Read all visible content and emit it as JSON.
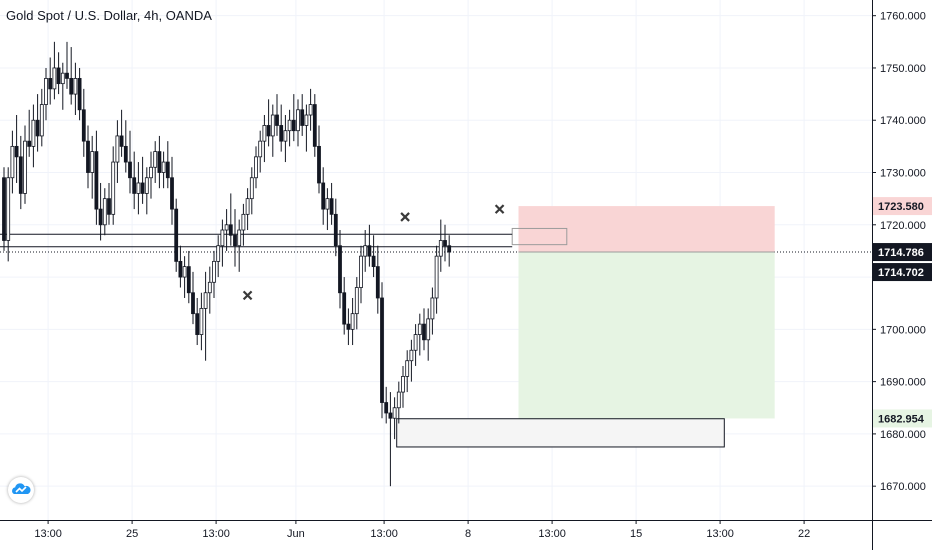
{
  "title": "Gold Spot / U.S. Dollar, 4h, OANDA",
  "colors": {
    "candle": "#131722",
    "grid": "#f0f3fa",
    "stop_zone": "#f9d5d5",
    "target_zone": "#e6f4e3",
    "badge_dark": "#131722",
    "badge_red": "#f9d5d5",
    "badge_green": "#e6f4e3",
    "logo": "#2196f3"
  },
  "icons": {
    "logo": "tradingview-logo-icon",
    "marker": "x-marker-icon"
  },
  "chart_data": {
    "type": "candlestick",
    "title": "Gold Spot / U.S. Dollar, 4h, OANDA",
    "ylim": [
      1662,
      1763
    ],
    "y_ticks": [
      1670,
      1680,
      1690,
      1700,
      1710,
      1720,
      1730,
      1740,
      1750,
      1760
    ],
    "y_tick_labels": [
      "1670.000",
      "1680.000",
      "1690.000",
      "1700.000",
      "1710.000",
      "1720.000",
      "1730.000",
      "1740.000",
      "1750.000",
      "1760.000"
    ],
    "x_ticks": [
      {
        "label": "13:00",
        "bar": 10.5
      },
      {
        "label": "25",
        "bar": 30.5
      },
      {
        "label": "13:00",
        "bar": 50.5
      },
      {
        "label": "Jun",
        "bar": 69.5
      },
      {
        "label": "13:00",
        "bar": 90.5
      },
      {
        "label": "8",
        "bar": 110.5
      },
      {
        "label": "13:00",
        "bar": 130.5
      },
      {
        "label": "15",
        "bar": 150.5
      },
      {
        "label": "13:00",
        "bar": 170.5
      },
      {
        "label": "22",
        "bar": 190.5
      }
    ],
    "bar_index_range": [
      -1,
      202
    ],
    "candles": [
      {
        "o": 1729,
        "h": 1731,
        "l": 1715,
        "c": 1717
      },
      {
        "o": 1717,
        "h": 1731,
        "l": 1713,
        "c": 1729
      },
      {
        "o": 1729,
        "h": 1738,
        "l": 1726,
        "c": 1735
      },
      {
        "o": 1735,
        "h": 1741,
        "l": 1728,
        "c": 1733
      },
      {
        "o": 1733,
        "h": 1737,
        "l": 1723,
        "c": 1726
      },
      {
        "o": 1726,
        "h": 1739,
        "l": 1724,
        "c": 1736
      },
      {
        "o": 1736,
        "h": 1742,
        "l": 1733,
        "c": 1735
      },
      {
        "o": 1735,
        "h": 1743,
        "l": 1731,
        "c": 1740
      },
      {
        "o": 1740,
        "h": 1745,
        "l": 1734,
        "c": 1737
      },
      {
        "o": 1737,
        "h": 1746,
        "l": 1735,
        "c": 1743
      },
      {
        "o": 1743,
        "h": 1750,
        "l": 1740,
        "c": 1748
      },
      {
        "o": 1748,
        "h": 1752,
        "l": 1743,
        "c": 1746
      },
      {
        "o": 1746,
        "h": 1755,
        "l": 1744,
        "c": 1750
      },
      {
        "o": 1750,
        "h": 1753,
        "l": 1745,
        "c": 1747
      },
      {
        "o": 1747,
        "h": 1751,
        "l": 1742,
        "c": 1749
      },
      {
        "o": 1749,
        "h": 1755,
        "l": 1746,
        "c": 1748
      },
      {
        "o": 1748,
        "h": 1754,
        "l": 1743,
        "c": 1745
      },
      {
        "o": 1745,
        "h": 1751,
        "l": 1741,
        "c": 1748
      },
      {
        "o": 1748,
        "h": 1750,
        "l": 1740,
        "c": 1742
      },
      {
        "o": 1742,
        "h": 1746,
        "l": 1733,
        "c": 1736
      },
      {
        "o": 1736,
        "h": 1739,
        "l": 1727,
        "c": 1730
      },
      {
        "o": 1730,
        "h": 1737,
        "l": 1725,
        "c": 1734
      },
      {
        "o": 1734,
        "h": 1738,
        "l": 1720,
        "c": 1723
      },
      {
        "o": 1723,
        "h": 1728,
        "l": 1717,
        "c": 1720
      },
      {
        "o": 1720,
        "h": 1727,
        "l": 1718,
        "c": 1725
      },
      {
        "o": 1725,
        "h": 1728,
        "l": 1720,
        "c": 1722
      },
      {
        "o": 1722,
        "h": 1735,
        "l": 1720,
        "c": 1732
      },
      {
        "o": 1732,
        "h": 1740,
        "l": 1728,
        "c": 1737
      },
      {
        "o": 1737,
        "h": 1742,
        "l": 1733,
        "c": 1735
      },
      {
        "o": 1735,
        "h": 1740,
        "l": 1730,
        "c": 1732
      },
      {
        "o": 1732,
        "h": 1738,
        "l": 1726,
        "c": 1729
      },
      {
        "o": 1729,
        "h": 1734,
        "l": 1723,
        "c": 1726
      },
      {
        "o": 1726,
        "h": 1732,
        "l": 1722,
        "c": 1728
      },
      {
        "o": 1728,
        "h": 1733,
        "l": 1724,
        "c": 1726
      },
      {
        "o": 1726,
        "h": 1731,
        "l": 1722,
        "c": 1729
      },
      {
        "o": 1729,
        "h": 1734,
        "l": 1725,
        "c": 1731
      },
      {
        "o": 1731,
        "h": 1736,
        "l": 1728,
        "c": 1734
      },
      {
        "o": 1734,
        "h": 1737,
        "l": 1727,
        "c": 1730
      },
      {
        "o": 1730,
        "h": 1734,
        "l": 1727,
        "c": 1732
      },
      {
        "o": 1732,
        "h": 1736,
        "l": 1727,
        "c": 1729
      },
      {
        "o": 1729,
        "h": 1733,
        "l": 1720,
        "c": 1723
      },
      {
        "o": 1723,
        "h": 1725,
        "l": 1711,
        "c": 1713
      },
      {
        "o": 1713,
        "h": 1716,
        "l": 1708,
        "c": 1710
      },
      {
        "o": 1710,
        "h": 1714,
        "l": 1706,
        "c": 1712
      },
      {
        "o": 1712,
        "h": 1715,
        "l": 1705,
        "c": 1707
      },
      {
        "o": 1707,
        "h": 1711,
        "l": 1701,
        "c": 1703
      },
      {
        "o": 1703,
        "h": 1706,
        "l": 1697,
        "c": 1699
      },
      {
        "o": 1699,
        "h": 1707,
        "l": 1696,
        "c": 1704
      },
      {
        "o": 1704,
        "h": 1711,
        "l": 1694,
        "c": 1707
      },
      {
        "o": 1707,
        "h": 1712,
        "l": 1703,
        "c": 1709
      },
      {
        "o": 1709,
        "h": 1715,
        "l": 1706,
        "c": 1713
      },
      {
        "o": 1713,
        "h": 1718,
        "l": 1710,
        "c": 1716
      },
      {
        "o": 1716,
        "h": 1721,
        "l": 1712,
        "c": 1719
      },
      {
        "o": 1719,
        "h": 1723,
        "l": 1715,
        "c": 1720
      },
      {
        "o": 1720,
        "h": 1726,
        "l": 1716,
        "c": 1718
      },
      {
        "o": 1718,
        "h": 1723,
        "l": 1712,
        "c": 1716
      },
      {
        "o": 1716,
        "h": 1721,
        "l": 1711,
        "c": 1719
      },
      {
        "o": 1719,
        "h": 1724,
        "l": 1716,
        "c": 1722
      },
      {
        "o": 1722,
        "h": 1727,
        "l": 1719,
        "c": 1725
      },
      {
        "o": 1725,
        "h": 1731,
        "l": 1722,
        "c": 1729
      },
      {
        "o": 1729,
        "h": 1735,
        "l": 1727,
        "c": 1733
      },
      {
        "o": 1733,
        "h": 1738,
        "l": 1730,
        "c": 1736
      },
      {
        "o": 1736,
        "h": 1741,
        "l": 1732,
        "c": 1739
      },
      {
        "o": 1739,
        "h": 1744,
        "l": 1735,
        "c": 1737
      },
      {
        "o": 1737,
        "h": 1743,
        "l": 1733,
        "c": 1741
      },
      {
        "o": 1741,
        "h": 1745,
        "l": 1737,
        "c": 1739
      },
      {
        "o": 1739,
        "h": 1743,
        "l": 1734,
        "c": 1736
      },
      {
        "o": 1736,
        "h": 1741,
        "l": 1732,
        "c": 1738
      },
      {
        "o": 1738,
        "h": 1742,
        "l": 1735,
        "c": 1740
      },
      {
        "o": 1740,
        "h": 1745,
        "l": 1736,
        "c": 1738
      },
      {
        "o": 1738,
        "h": 1744,
        "l": 1735,
        "c": 1742
      },
      {
        "o": 1742,
        "h": 1745,
        "l": 1737,
        "c": 1739
      },
      {
        "o": 1739,
        "h": 1743,
        "l": 1734,
        "c": 1741
      },
      {
        "o": 1741,
        "h": 1746,
        "l": 1738,
        "c": 1743
      },
      {
        "o": 1743,
        "h": 1745,
        "l": 1733,
        "c": 1735
      },
      {
        "o": 1735,
        "h": 1739,
        "l": 1726,
        "c": 1728
      },
      {
        "o": 1728,
        "h": 1731,
        "l": 1720,
        "c": 1723
      },
      {
        "o": 1723,
        "h": 1727,
        "l": 1719,
        "c": 1725
      },
      {
        "o": 1725,
        "h": 1728,
        "l": 1720,
        "c": 1722
      },
      {
        "o": 1722,
        "h": 1725,
        "l": 1714,
        "c": 1716
      },
      {
        "o": 1716,
        "h": 1719,
        "l": 1704,
        "c": 1707
      },
      {
        "o": 1707,
        "h": 1710,
        "l": 1699,
        "c": 1701
      },
      {
        "o": 1701,
        "h": 1704,
        "l": 1697,
        "c": 1700
      },
      {
        "o": 1700,
        "h": 1706,
        "l": 1697,
        "c": 1703
      },
      {
        "o": 1703,
        "h": 1710,
        "l": 1700,
        "c": 1708
      },
      {
        "o": 1708,
        "h": 1716,
        "l": 1705,
        "c": 1714
      },
      {
        "o": 1714,
        "h": 1719,
        "l": 1711,
        "c": 1716
      },
      {
        "o": 1716,
        "h": 1720,
        "l": 1712,
        "c": 1714
      },
      {
        "o": 1714,
        "h": 1718,
        "l": 1710,
        "c": 1712
      },
      {
        "o": 1712,
        "h": 1716,
        "l": 1703,
        "c": 1706
      },
      {
        "o": 1706,
        "h": 1709,
        "l": 1683,
        "c": 1686
      },
      {
        "o": 1686,
        "h": 1689,
        "l": 1682,
        "c": 1684
      },
      {
        "o": 1684,
        "h": 1688,
        "l": 1670,
        "c": 1683
      },
      {
        "o": 1683,
        "h": 1687,
        "l": 1679,
        "c": 1685
      },
      {
        "o": 1685,
        "h": 1690,
        "l": 1682,
        "c": 1688
      },
      {
        "o": 1688,
        "h": 1693,
        "l": 1685,
        "c": 1691
      },
      {
        "o": 1691,
        "h": 1696,
        "l": 1688,
        "c": 1694
      },
      {
        "o": 1694,
        "h": 1698,
        "l": 1690,
        "c": 1696
      },
      {
        "o": 1696,
        "h": 1701,
        "l": 1693,
        "c": 1699
      },
      {
        "o": 1699,
        "h": 1703,
        "l": 1695,
        "c": 1701
      },
      {
        "o": 1701,
        "h": 1704,
        "l": 1696,
        "c": 1698
      },
      {
        "o": 1698,
        "h": 1704,
        "l": 1694,
        "c": 1702
      },
      {
        "o": 1702,
        "h": 1708,
        "l": 1699,
        "c": 1706
      },
      {
        "o": 1706,
        "h": 1716,
        "l": 1703,
        "c": 1714
      },
      {
        "o": 1714,
        "h": 1721,
        "l": 1711,
        "c": 1717
      },
      {
        "o": 1717,
        "h": 1720,
        "l": 1713,
        "c": 1716
      },
      {
        "o": 1716,
        "h": 1718,
        "l": 1712,
        "c": 1714.786
      }
    ],
    "horizontal_lines": [
      {
        "value": 1718.2,
        "from_bar": -1,
        "to_bar": 121
      },
      {
        "value": 1715.8,
        "from_bar": -1,
        "to_bar": 121
      }
    ],
    "current_price_line": {
      "value": 1714.786,
      "style": "dotted"
    },
    "boxes": [
      {
        "name": "demand-zone",
        "x0": 93.5,
        "x1": 171.5,
        "y0": 1677.5,
        "y1": 1682.9
      },
      {
        "name": "resistance-box",
        "x0": 121,
        "x1": 134,
        "y0": 1716.2,
        "y1": 1719.3
      }
    ],
    "position": {
      "type": "long",
      "entry": 1714.786,
      "stop": 1723.58,
      "target": 1682.954,
      "x0": 122.5,
      "x1": 183.5
    },
    "markers": [
      {
        "bar": 58,
        "value": 1706.5
      },
      {
        "bar": 95.5,
        "value": 1721.5
      },
      {
        "bar": 118,
        "value": 1723
      }
    ],
    "price_badges": [
      {
        "label": "1723.580",
        "value": 1723.58,
        "style": "red"
      },
      {
        "label": "1714.786",
        "value": 1714.786,
        "style": "dark"
      },
      {
        "label": "1714.702",
        "value": 1714.702,
        "style": "dark"
      },
      {
        "label": "1682.954",
        "value": 1682.954,
        "style": "green"
      }
    ]
  }
}
